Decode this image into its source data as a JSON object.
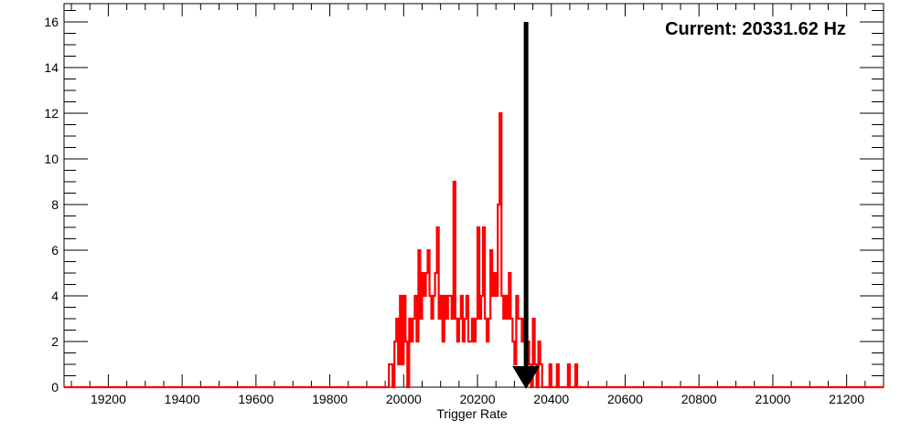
{
  "chart_data": {
    "type": "histogram",
    "title": "",
    "annotation": "Current: 20331.62 Hz",
    "current_value": 20331.62,
    "arrow_top_y": 16,
    "xlabel": "Trigger Rate",
    "ylabel": "",
    "xlim": [
      19080,
      21300
    ],
    "ylim": [
      0,
      16.8
    ],
    "x_ticks": [
      19200,
      19400,
      19600,
      19800,
      20000,
      20200,
      20400,
      20600,
      20800,
      21000,
      21200
    ],
    "y_ticks": [
      0,
      2,
      4,
      6,
      8,
      10,
      12,
      14,
      16
    ],
    "grid": false,
    "legend": "none",
    "series": [
      {
        "color": "#ff0000",
        "points": [
          [
            19960,
            1
          ],
          [
            19970,
            0
          ],
          [
            19975,
            2
          ],
          [
            19980,
            3
          ],
          [
            19985,
            1
          ],
          [
            19990,
            4
          ],
          [
            19995,
            1
          ],
          [
            20000,
            4
          ],
          [
            20005,
            2
          ],
          [
            20010,
            0
          ],
          [
            20015,
            3
          ],
          [
            20020,
            2
          ],
          [
            20025,
            3
          ],
          [
            20030,
            4
          ],
          [
            20035,
            2
          ],
          [
            20040,
            6
          ],
          [
            20045,
            3
          ],
          [
            20050,
            5
          ],
          [
            20055,
            4
          ],
          [
            20060,
            5
          ],
          [
            20065,
            6
          ],
          [
            20070,
            4
          ],
          [
            20075,
            3
          ],
          [
            20080,
            4
          ],
          [
            20085,
            5
          ],
          [
            20090,
            7
          ],
          [
            20095,
            3
          ],
          [
            20100,
            4
          ],
          [
            20105,
            2
          ],
          [
            20110,
            4
          ],
          [
            20115,
            3
          ],
          [
            20120,
            4
          ],
          [
            20125,
            4
          ],
          [
            20130,
            3
          ],
          [
            20135,
            9
          ],
          [
            20140,
            3
          ],
          [
            20145,
            2
          ],
          [
            20150,
            3
          ],
          [
            20155,
            4
          ],
          [
            20160,
            2
          ],
          [
            20165,
            3
          ],
          [
            20170,
            4
          ],
          [
            20175,
            2
          ],
          [
            20180,
            2
          ],
          [
            20185,
            3
          ],
          [
            20190,
            2
          ],
          [
            20195,
            3
          ],
          [
            20200,
            7
          ],
          [
            20205,
            3
          ],
          [
            20210,
            4
          ],
          [
            20215,
            7
          ],
          [
            20220,
            3
          ],
          [
            20225,
            2
          ],
          [
            20230,
            3
          ],
          [
            20235,
            6
          ],
          [
            20240,
            4
          ],
          [
            20245,
            5
          ],
          [
            20250,
            4
          ],
          [
            20255,
            8
          ],
          [
            20260,
            12
          ],
          [
            20265,
            4
          ],
          [
            20270,
            3
          ],
          [
            20275,
            4
          ],
          [
            20280,
            3
          ],
          [
            20285,
            5
          ],
          [
            20290,
            3
          ],
          [
            20295,
            2
          ],
          [
            20300,
            1
          ],
          [
            20305,
            4
          ],
          [
            20310,
            3
          ],
          [
            20315,
            3
          ],
          [
            20320,
            2
          ],
          [
            20325,
            3
          ],
          [
            20330,
            1
          ],
          [
            20335,
            2
          ],
          [
            20340,
            1
          ],
          [
            20345,
            0
          ],
          [
            20350,
            3
          ],
          [
            20355,
            1
          ],
          [
            20360,
            0
          ],
          [
            20365,
            2
          ],
          [
            20370,
            1
          ],
          [
            20375,
            0
          ],
          [
            20395,
            1
          ],
          [
            20400,
            0
          ],
          [
            20415,
            1
          ],
          [
            20420,
            0
          ],
          [
            20445,
            1
          ],
          [
            20450,
            0
          ],
          [
            20465,
            1
          ],
          [
            20470,
            0
          ]
        ]
      }
    ]
  }
}
